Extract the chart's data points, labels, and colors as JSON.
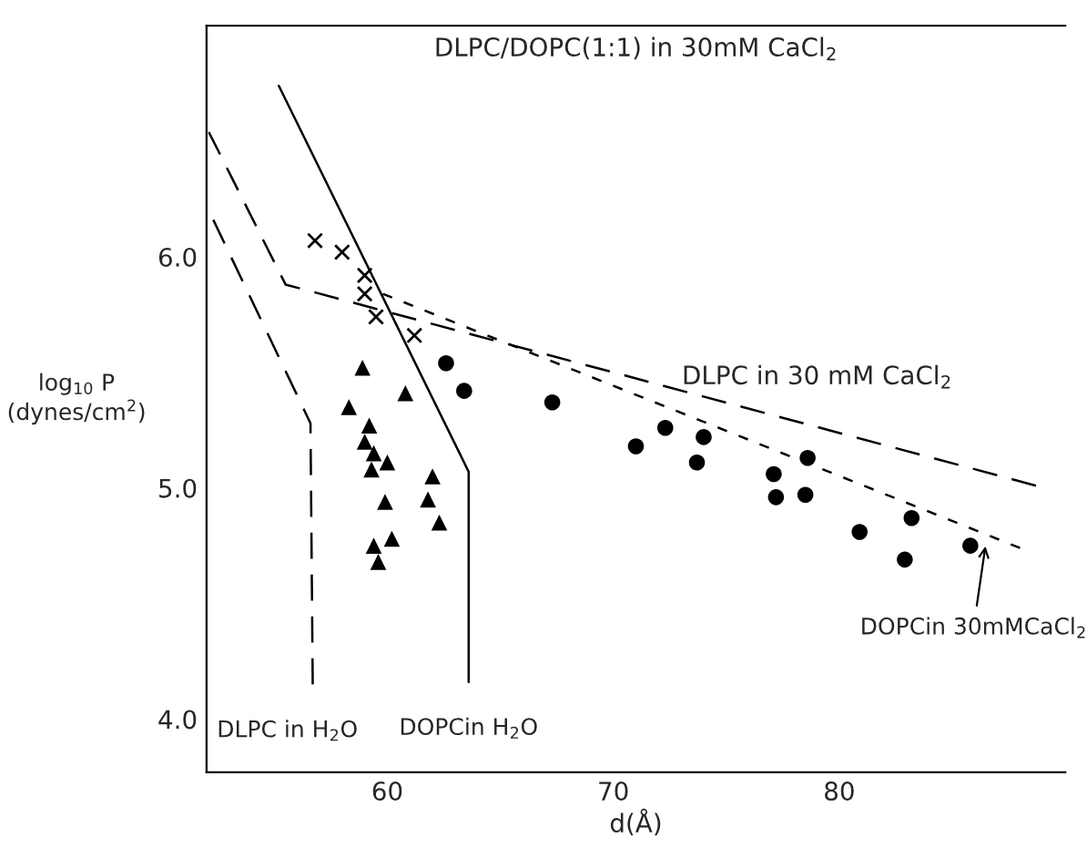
{
  "chart_data": {
    "type": "scatter",
    "title": "DLPC/DOPC(1:1) in 30mM CaCl$_{2}$",
    "xlabel": "d(Å)",
    "ylabel": "log$_{10}$ P\n(dynes/cm$^{2}$)",
    "xlim": [
      52,
      90
    ],
    "ylim": [
      3.77,
      7.0
    ],
    "xticks": [
      60,
      70,
      80
    ],
    "yticks": [
      {
        "value": 4,
        "label": "4.0"
      },
      {
        "value": 5,
        "label": "5.0"
      },
      {
        "value": 6,
        "label": "6.0"
      }
    ],
    "grid": false,
    "legend": false,
    "series": [
      {
        "marker": "cross",
        "color": "#000000",
        "x": [
          56.8,
          58.0,
          59.0,
          59.0,
          59.5,
          61.2
        ],
        "values": [
          6.07,
          6.02,
          5.92,
          5.84,
          5.74,
          5.66
        ]
      },
      {
        "marker": "triangle",
        "color": "#000000",
        "x": [
          58.9,
          60.8,
          58.3,
          59.2,
          59.0,
          59.4,
          60.0,
          59.3,
          62.0,
          59.9,
          61.8,
          62.3,
          60.2,
          59.4,
          59.6
        ],
        "values": [
          5.52,
          5.41,
          5.35,
          5.27,
          5.2,
          5.15,
          5.11,
          5.08,
          5.05,
          4.94,
          4.95,
          4.85,
          4.78,
          4.75,
          4.68
        ]
      },
      {
        "marker": "circle",
        "color": "#000000",
        "x": [
          62.6,
          63.4,
          67.3,
          71.0,
          72.3,
          74.0,
          73.7,
          77.1,
          77.2,
          78.6,
          78.5,
          80.9,
          83.2,
          82.9,
          85.8
        ],
        "values": [
          5.54,
          5.42,
          5.37,
          5.18,
          5.26,
          5.22,
          5.11,
          5.06,
          4.96,
          5.13,
          4.97,
          4.81,
          4.87,
          4.69,
          4.75
        ]
      },
      {
        "type": "line",
        "name": "DLPC in 30 mM CaCl$_{2}$",
        "line_style": "dashed",
        "color": "#000000",
        "x": [
          52.1,
          55.5,
          88.7
        ],
        "values": [
          6.54,
          5.88,
          5.01
        ]
      },
      {
        "type": "line",
        "name": "DOPCin 30mMCaCl$_{2}$",
        "line_style": "dotted",
        "color": "#000000",
        "x": [
          59.8,
          88.0
        ],
        "values": [
          5.84,
          4.74
        ]
      },
      {
        "type": "line",
        "name": "DLPC in H$_{2}$O",
        "line_style": "dashed",
        "color": "#000000",
        "x": [
          52.3,
          56.6,
          56.7
        ],
        "values": [
          6.16,
          5.28,
          4.15
        ]
      },
      {
        "type": "line",
        "name": "DOPCin H$_{2}$O",
        "line_style": "solid",
        "color": "#000000",
        "x": [
          55.2,
          63.6,
          63.6
        ],
        "values": [
          6.74,
          5.07,
          4.16
        ]
      }
    ]
  }
}
